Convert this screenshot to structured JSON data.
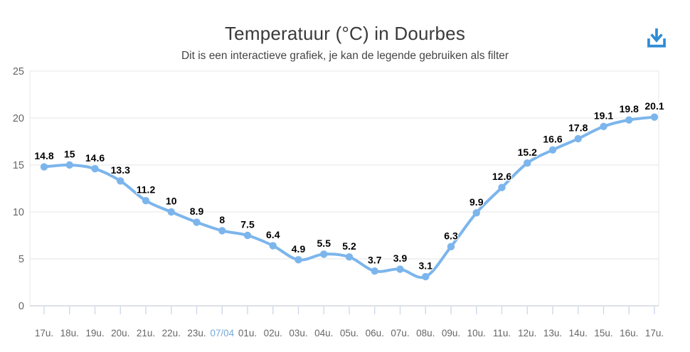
{
  "header": {
    "title": "Temperatuur (°C) in Dourbes",
    "subtitle": "Dit is een interactieve grafiek, je kan de legende gebruiken als filter"
  },
  "toolbar": {
    "download_icon": "download-icon",
    "download_color": "#2e8cd5"
  },
  "chart_data": {
    "type": "line",
    "title": "Temperatuur (°C) in Dourbes",
    "subtitle": "Dit is een interactieve grafiek, je kan de legende gebruiken als filter",
    "categories": [
      "17u.",
      "18u.",
      "19u.",
      "20u.",
      "21u.",
      "22u.",
      "23u.",
      "07/04",
      "01u.",
      "02u.",
      "03u.",
      "04u.",
      "05u.",
      "06u.",
      "07u.",
      "08u.",
      "09u.",
      "10u.",
      "11u.",
      "12u.",
      "13u.",
      "14u.",
      "15u.",
      "16u.",
      "17u."
    ],
    "values": [
      14.8,
      15,
      14.6,
      13.3,
      11.2,
      10,
      8.9,
      8,
      7.5,
      6.4,
      4.9,
      5.5,
      5.2,
      3.7,
      3.9,
      3.1,
      6.3,
      9.9,
      12.6,
      15.2,
      16.6,
      17.8,
      19.1,
      19.8,
      20.1
    ],
    "series_name": "Temperatuur (°C)",
    "xlabel": "",
    "ylabel": "",
    "ylim": [
      0,
      25
    ],
    "yticks": [
      0,
      5,
      10,
      15,
      20,
      25
    ],
    "grid": true,
    "legend_position": "none",
    "data_labels": true,
    "highlighted_category": "07/04",
    "colors": {
      "line": "#7cb5ec",
      "marker": "#7cb5ec",
      "data_label": "#000000",
      "axis_label": "#666666",
      "highlighted_axis_label": "#76a9dc",
      "grid_line": "#e6e6e6",
      "plot_border": "#e7e7ee",
      "axis_line": "#c9cedb",
      "tick": "#ccd6eb"
    }
  }
}
